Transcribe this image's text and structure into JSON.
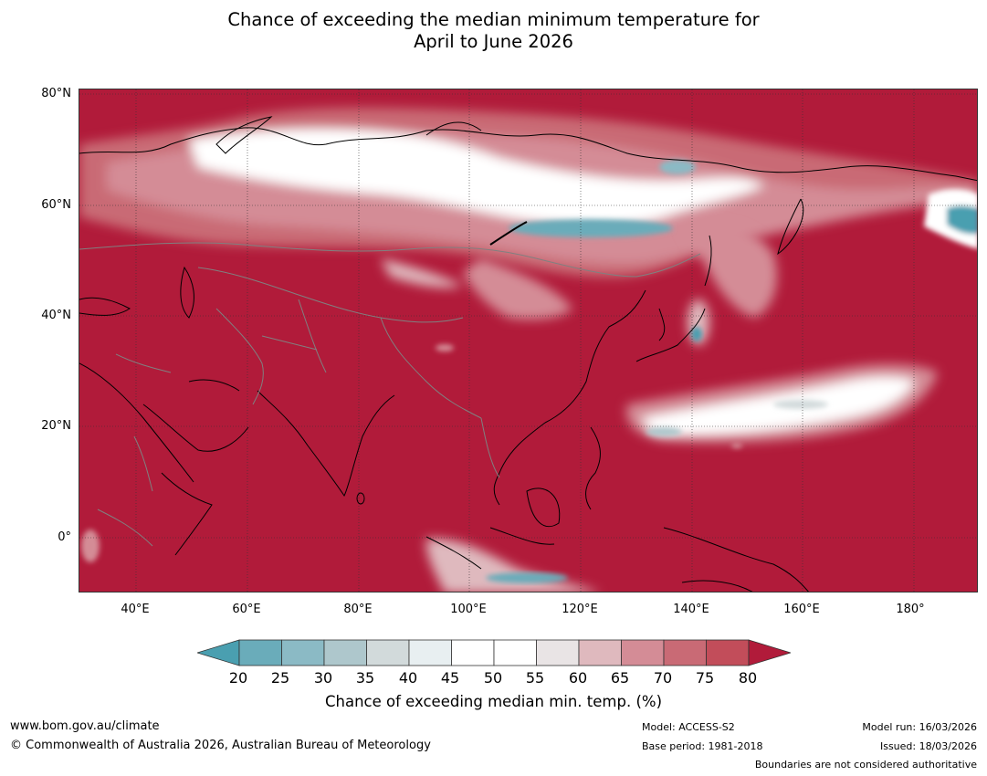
{
  "title": {
    "line1": "Chance of exceeding the median minimum temperature for",
    "line2": "April to June 2026"
  },
  "map": {
    "lat_labels": [
      "80°N",
      "60°N",
      "40°N",
      "20°N",
      "0°"
    ],
    "lon_labels": [
      "40°E",
      "60°E",
      "80°E",
      "100°E",
      "120°E",
      "140°E",
      "160°E",
      "180°"
    ],
    "colors": {
      "dominant": "#b11b3a",
      "white": "#ffffff",
      "teal": "#4a9fb0",
      "pink": "#d48c96",
      "rose": "#c24d5a",
      "coastline": "#000000",
      "border": "#808080"
    }
  },
  "colorbar": {
    "ticks": [
      "20",
      "25",
      "30",
      "35",
      "40",
      "45",
      "50",
      "55",
      "60",
      "65",
      "70",
      "75",
      "80"
    ],
    "colors": [
      "#6aacba",
      "#8bbac5",
      "#aec7cc",
      "#d2dadb",
      "#e8eff1",
      "#ffffff",
      "#ffffff",
      "#e9e4e5",
      "#dfb9be",
      "#d48c96",
      "#c96a75",
      "#c24d5a"
    ],
    "under_color": "#4a9fb0",
    "over_color": "#b11b3a",
    "label": "Chance of exceeding median min. temp. (%)"
  },
  "footer": {
    "website": "www.bom.gov.au/climate",
    "copyright": "© Commonwealth of Australia 2026, Australian Bureau of Meteorology",
    "model": "Model: ACCESS-S2",
    "base_period": "Base period: 1981-2018",
    "model_run": "Model run: 16/03/2026",
    "issued": "Issued: 18/03/2026",
    "disclaimer": "Boundaries are not considered authoritative"
  }
}
